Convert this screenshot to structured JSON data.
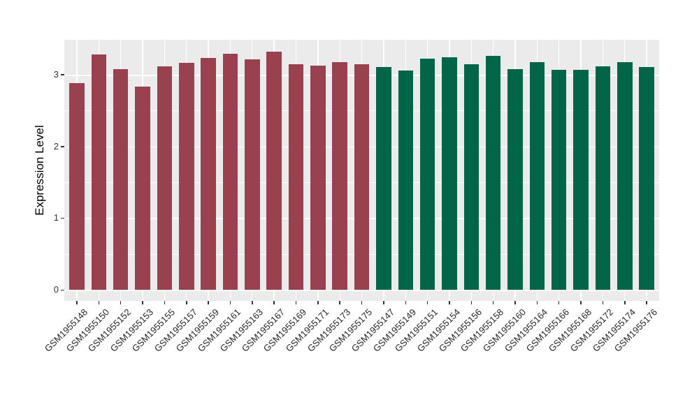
{
  "chart_data": {
    "type": "bar",
    "title": "",
    "xlabel": "",
    "ylabel": "Expression Level",
    "ylim": [
      0,
      3.49
    ],
    "yticks": [
      0,
      1,
      2,
      3
    ],
    "grid": "on",
    "legend": "none",
    "panel_bg": "#EBEBEB",
    "grid_color": "#FFFFFF",
    "tick_color": "#333333",
    "group_colors": {
      "A": "#9A4150",
      "B": "#006647"
    },
    "bars": [
      {
        "label": "GSM1955148",
        "value": 2.88,
        "group": "A"
      },
      {
        "label": "GSM1955150",
        "value": 3.28,
        "group": "A"
      },
      {
        "label": "GSM1955152",
        "value": 3.08,
        "group": "A"
      },
      {
        "label": "GSM1955153",
        "value": 2.83,
        "group": "A"
      },
      {
        "label": "GSM1955155",
        "value": 3.12,
        "group": "A"
      },
      {
        "label": "GSM1955157",
        "value": 3.17,
        "group": "A"
      },
      {
        "label": "GSM1955159",
        "value": 3.23,
        "group": "A"
      },
      {
        "label": "GSM1955161",
        "value": 3.29,
        "group": "A"
      },
      {
        "label": "GSM1955163",
        "value": 3.21,
        "group": "A"
      },
      {
        "label": "GSM1955167",
        "value": 3.32,
        "group": "A"
      },
      {
        "label": "GSM1955169",
        "value": 3.15,
        "group": "A"
      },
      {
        "label": "GSM1955171",
        "value": 3.13,
        "group": "A"
      },
      {
        "label": "GSM1955173",
        "value": 3.18,
        "group": "A"
      },
      {
        "label": "GSM1955175",
        "value": 3.15,
        "group": "A"
      },
      {
        "label": "GSM1955147",
        "value": 3.11,
        "group": "B"
      },
      {
        "label": "GSM1955149",
        "value": 3.06,
        "group": "B"
      },
      {
        "label": "GSM1955151",
        "value": 3.22,
        "group": "B"
      },
      {
        "label": "GSM1955154",
        "value": 3.24,
        "group": "B"
      },
      {
        "label": "GSM1955156",
        "value": 3.15,
        "group": "B"
      },
      {
        "label": "GSM1955158",
        "value": 3.26,
        "group": "B"
      },
      {
        "label": "GSM1955160",
        "value": 3.08,
        "group": "B"
      },
      {
        "label": "GSM1955164",
        "value": 3.18,
        "group": "B"
      },
      {
        "label": "GSM1955166",
        "value": 3.07,
        "group": "B"
      },
      {
        "label": "GSM1955168",
        "value": 3.07,
        "group": "B"
      },
      {
        "label": "GSM1955172",
        "value": 3.12,
        "group": "B"
      },
      {
        "label": "GSM1955174",
        "value": 3.18,
        "group": "B"
      },
      {
        "label": "GSM1955176",
        "value": 3.11,
        "group": "B"
      }
    ]
  }
}
